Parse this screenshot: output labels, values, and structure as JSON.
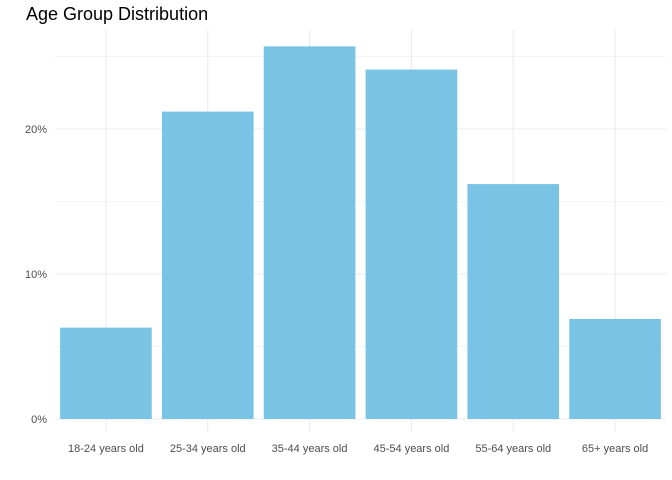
{
  "chart_data": {
    "type": "bar",
    "title": "Age Group Distribution",
    "xlabel": "",
    "ylabel": "",
    "categories": [
      "18-24 years old",
      "25-34 years old",
      "35-44 years old",
      "45-54 years old",
      "55-64 years old",
      "65+ years old"
    ],
    "values": [
      6.3,
      21.2,
      25.7,
      24.1,
      16.2,
      6.9
    ],
    "y_unit": "%",
    "ylim": [
      0,
      27
    ],
    "yticks": [
      0,
      10,
      20
    ],
    "ytick_labels": [
      "0%",
      "10%",
      "20%"
    ],
    "grid": true,
    "colors": {
      "bar": "#79C3E5",
      "grid_major": "#EBEBEB",
      "grid_minor": "#F4F4F4",
      "background": "#FFFFFF"
    }
  }
}
